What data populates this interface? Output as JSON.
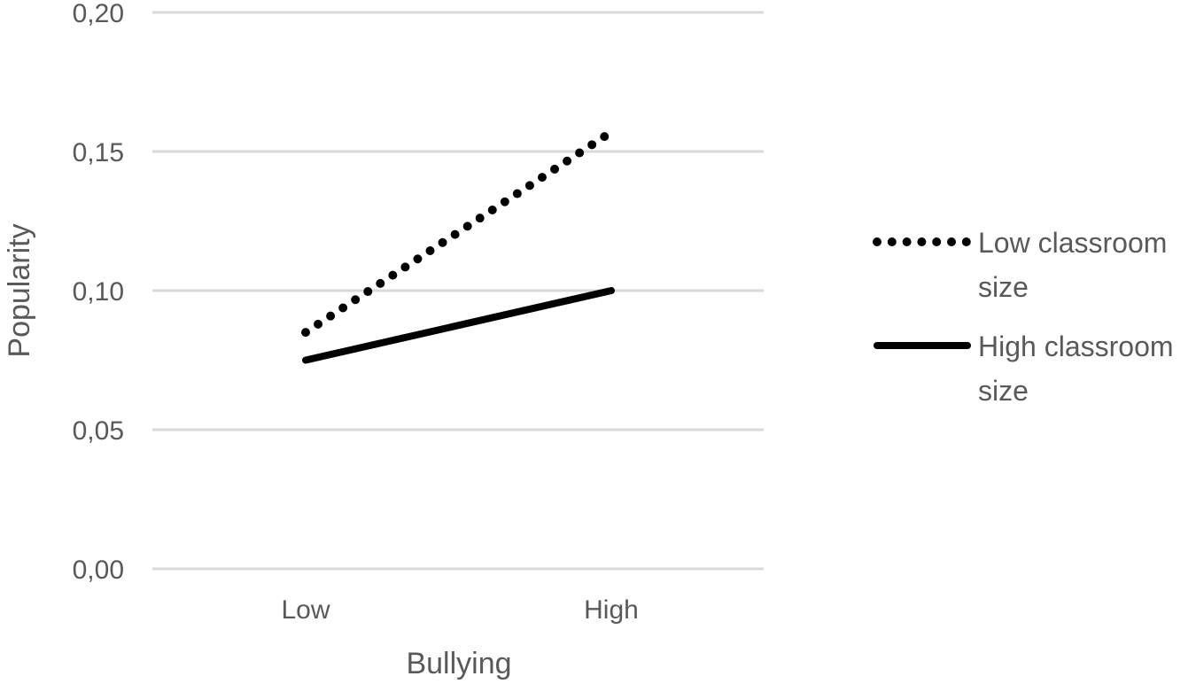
{
  "chart_data": {
    "type": "line",
    "categories": [
      "Low",
      "High"
    ],
    "series": [
      {
        "name": "Low classroom size",
        "name_lines": [
          "Low classroom",
          "size"
        ],
        "values": [
          0.085,
          0.157
        ],
        "style": "dotted",
        "color": "#000000"
      },
      {
        "name": "High classroom size",
        "name_lines": [
          "High classroom",
          "size"
        ],
        "values": [
          0.075,
          0.1
        ],
        "style": "solid",
        "color": "#000000"
      }
    ],
    "y_ticks": [
      "0,00",
      "0,05",
      "0,10",
      "0,15",
      "0,20"
    ],
    "y_tick_values": [
      0,
      0.05,
      0.1,
      0.15,
      0.2
    ],
    "ylim": [
      0,
      0.2
    ],
    "xlabel": "Bullying",
    "ylabel": "Popularity",
    "grid": true,
    "legend": "right",
    "grid_color": "#d9d9d9",
    "text_color": "#595959"
  }
}
